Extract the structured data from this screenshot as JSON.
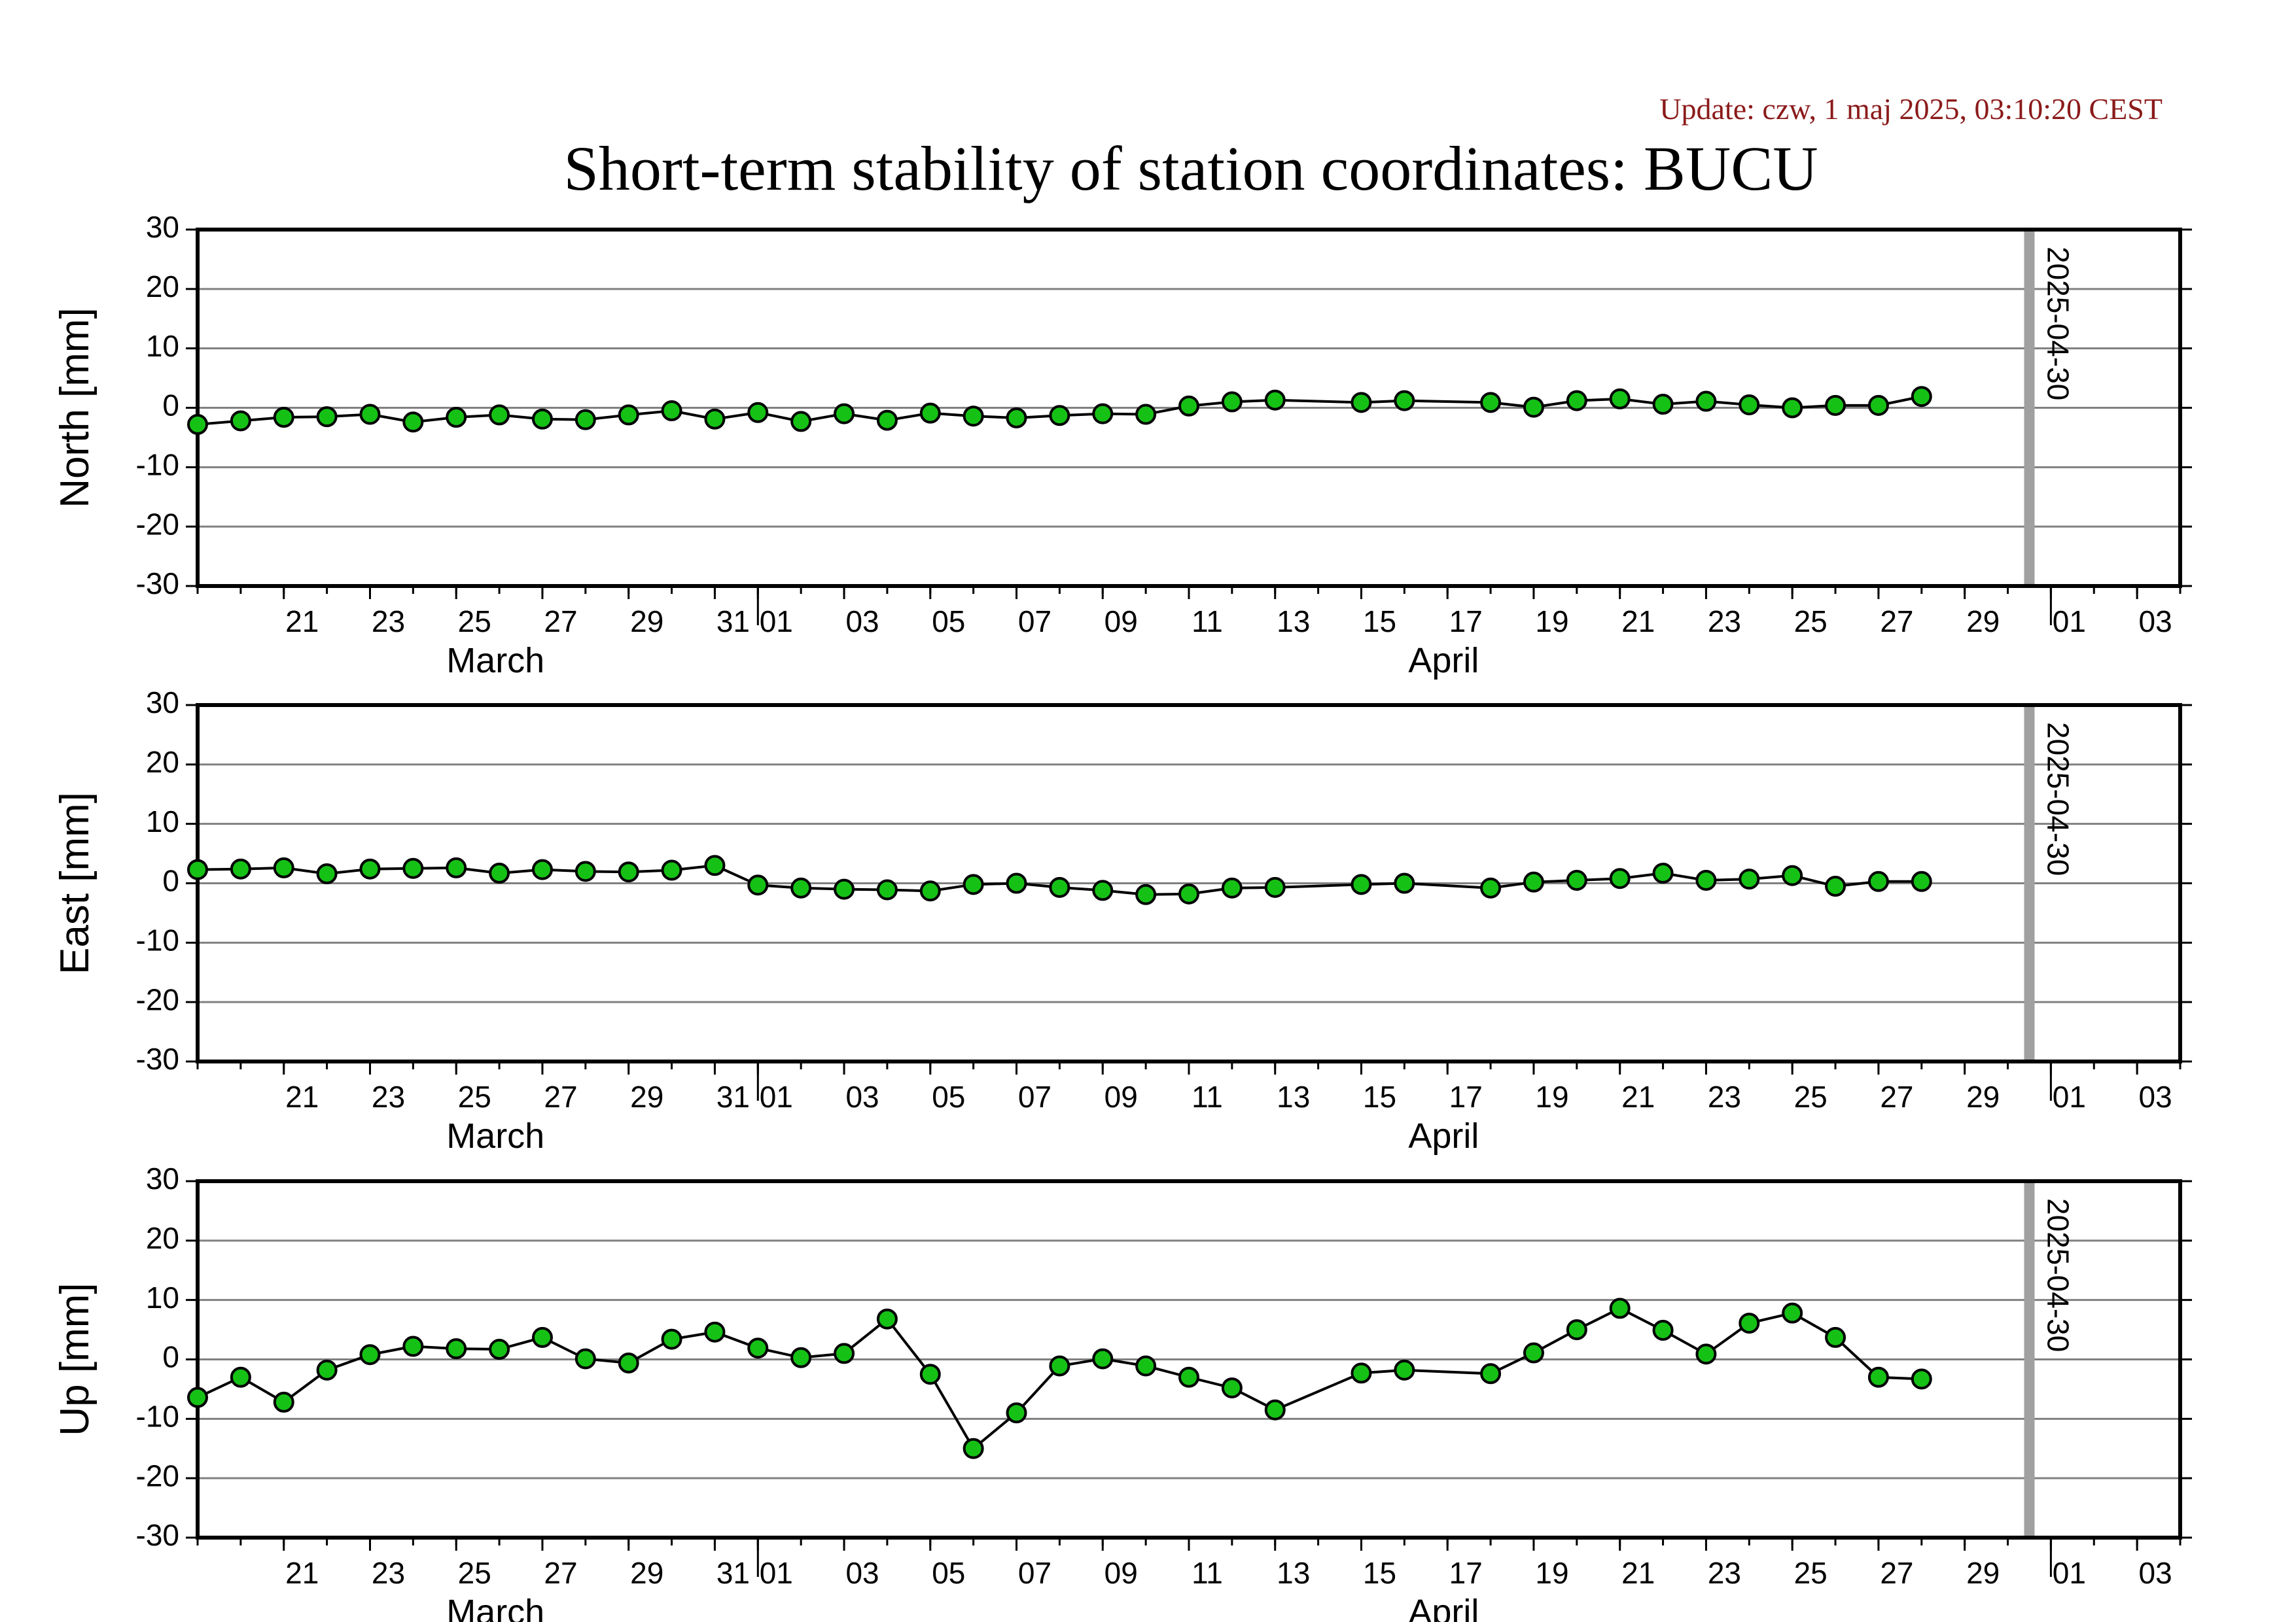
{
  "update_text": "Update: czw, 1 maj 2025, 03:10:20 CEST",
  "title": "Short-term stability of station coordinates: BUCU",
  "colors": {
    "marker_fill": "#16c116",
    "marker_stroke": "#000000",
    "line": "#000000",
    "grid": "#808080",
    "current_date_bar": "#a0a0a0",
    "update_text": "#8b1a1a"
  },
  "x_axis": {
    "start": "2025-03-19",
    "end": "2025-05-04",
    "day_ticks": [
      {
        "date": "2025-03-21",
        "label": "21"
      },
      {
        "date": "2025-03-23",
        "label": "23"
      },
      {
        "date": "2025-03-25",
        "label": "25"
      },
      {
        "date": "2025-03-27",
        "label": "27"
      },
      {
        "date": "2025-03-29",
        "label": "29"
      },
      {
        "date": "2025-03-31",
        "label": "31"
      },
      {
        "date": "2025-04-01",
        "label": "01"
      },
      {
        "date": "2025-04-03",
        "label": "03"
      },
      {
        "date": "2025-04-05",
        "label": "05"
      },
      {
        "date": "2025-04-07",
        "label": "07"
      },
      {
        "date": "2025-04-09",
        "label": "09"
      },
      {
        "date": "2025-04-11",
        "label": "11"
      },
      {
        "date": "2025-04-13",
        "label": "13"
      },
      {
        "date": "2025-04-15",
        "label": "15"
      },
      {
        "date": "2025-04-17",
        "label": "17"
      },
      {
        "date": "2025-04-19",
        "label": "19"
      },
      {
        "date": "2025-04-21",
        "label": "21"
      },
      {
        "date": "2025-04-23",
        "label": "23"
      },
      {
        "date": "2025-04-25",
        "label": "25"
      },
      {
        "date": "2025-04-27",
        "label": "27"
      },
      {
        "date": "2025-04-29",
        "label": "29"
      },
      {
        "date": "2025-05-01",
        "label": "01"
      },
      {
        "date": "2025-05-03",
        "label": "03"
      }
    ],
    "month_boundaries": [
      "2025-04-01",
      "2025-05-01"
    ],
    "month_labels": [
      {
        "date": "2025-03-25",
        "label": "March"
      },
      {
        "date": "2025-04-16",
        "label": "April"
      }
    ]
  },
  "current_date": {
    "date": "2025-04-30",
    "label": "2025-04-30"
  },
  "chart_data": [
    {
      "type": "line",
      "ylabel": "North [mm]",
      "ylim": [
        -30,
        30
      ],
      "yticks": [
        -30,
        -20,
        -10,
        0,
        10,
        20,
        30
      ],
      "grid": true,
      "markers": true,
      "x": [
        "2025-03-19",
        "2025-03-20",
        "2025-03-21",
        "2025-03-22",
        "2025-03-23",
        "2025-03-24",
        "2025-03-25",
        "2025-03-26",
        "2025-03-27",
        "2025-03-28",
        "2025-03-29",
        "2025-03-30",
        "2025-03-31",
        "2025-04-01",
        "2025-04-02",
        "2025-04-03",
        "2025-04-04",
        "2025-04-05",
        "2025-04-06",
        "2025-04-07",
        "2025-04-08",
        "2025-04-09",
        "2025-04-10",
        "2025-04-11",
        "2025-04-12",
        "2025-04-13",
        "2025-04-15",
        "2025-04-16",
        "2025-04-18",
        "2025-04-19",
        "2025-04-20",
        "2025-04-21",
        "2025-04-22",
        "2025-04-23",
        "2025-04-24",
        "2025-04-25",
        "2025-04-26",
        "2025-04-27",
        "2025-04-28"
      ],
      "values": [
        -2.8,
        -2.2,
        -1.6,
        -1.5,
        -1.1,
        -2.4,
        -1.6,
        -1.2,
        -1.9,
        -2.0,
        -1.2,
        -0.5,
        -1.9,
        -0.8,
        -2.3,
        -1.0,
        -2.1,
        -0.9,
        -1.4,
        -1.7,
        -1.3,
        -1.0,
        -1.1,
        0.3,
        1.0,
        1.3,
        0.9,
        1.2,
        0.9,
        0.1,
        1.2,
        1.5,
        0.6,
        1.1,
        0.5,
        0.0,
        0.4,
        0.4,
        1.9
      ]
    },
    {
      "type": "line",
      "ylabel": "East [mm]",
      "ylim": [
        -30,
        30
      ],
      "yticks": [
        -30,
        -20,
        -10,
        0,
        10,
        20,
        30
      ],
      "grid": true,
      "markers": true,
      "x": [
        "2025-03-19",
        "2025-03-20",
        "2025-03-21",
        "2025-03-22",
        "2025-03-23",
        "2025-03-24",
        "2025-03-25",
        "2025-03-26",
        "2025-03-27",
        "2025-03-28",
        "2025-03-29",
        "2025-03-30",
        "2025-03-31",
        "2025-04-01",
        "2025-04-02",
        "2025-04-03",
        "2025-04-04",
        "2025-04-05",
        "2025-04-06",
        "2025-04-07",
        "2025-04-08",
        "2025-04-09",
        "2025-04-10",
        "2025-04-11",
        "2025-04-12",
        "2025-04-13",
        "2025-04-15",
        "2025-04-16",
        "2025-04-18",
        "2025-04-19",
        "2025-04-20",
        "2025-04-21",
        "2025-04-22",
        "2025-04-23",
        "2025-04-24",
        "2025-04-25",
        "2025-04-26",
        "2025-04-27",
        "2025-04-28"
      ],
      "values": [
        2.3,
        2.4,
        2.6,
        1.6,
        2.4,
        2.5,
        2.6,
        1.7,
        2.3,
        2.0,
        1.9,
        2.2,
        3.0,
        -0.3,
        -0.8,
        -1.0,
        -1.1,
        -1.3,
        -0.2,
        0.0,
        -0.7,
        -1.2,
        -1.9,
        -1.8,
        -0.8,
        -0.7,
        -0.2,
        0.0,
        -0.8,
        0.2,
        0.5,
        0.8,
        1.7,
        0.5,
        0.7,
        1.3,
        -0.5,
        0.3,
        0.3
      ]
    },
    {
      "type": "line",
      "ylabel": "Up [mm]",
      "ylim": [
        -30,
        30
      ],
      "yticks": [
        -30,
        -20,
        -10,
        0,
        10,
        20,
        30
      ],
      "grid": true,
      "markers": true,
      "x": [
        "2025-03-19",
        "2025-03-20",
        "2025-03-21",
        "2025-03-22",
        "2025-03-23",
        "2025-03-24",
        "2025-03-25",
        "2025-03-26",
        "2025-03-27",
        "2025-03-28",
        "2025-03-29",
        "2025-03-30",
        "2025-03-31",
        "2025-04-01",
        "2025-04-02",
        "2025-04-03",
        "2025-04-04",
        "2025-04-05",
        "2025-04-06",
        "2025-04-07",
        "2025-04-08",
        "2025-04-09",
        "2025-04-10",
        "2025-04-11",
        "2025-04-12",
        "2025-04-13",
        "2025-04-15",
        "2025-04-16",
        "2025-04-18",
        "2025-04-19",
        "2025-04-20",
        "2025-04-21",
        "2025-04-22",
        "2025-04-23",
        "2025-04-24",
        "2025-04-25",
        "2025-04-26",
        "2025-04-27",
        "2025-04-28"
      ],
      "values": [
        -6.4,
        -3.0,
        -7.2,
        -1.8,
        0.8,
        2.2,
        1.8,
        1.7,
        3.7,
        0.1,
        -0.6,
        3.4,
        4.6,
        1.9,
        0.3,
        1.0,
        6.8,
        -2.5,
        -15.0,
        -9.0,
        -1.1,
        0.1,
        -1.1,
        -3.0,
        -4.8,
        -8.5,
        -2.3,
        -1.8,
        -2.4,
        1.1,
        5.0,
        8.6,
        4.9,
        0.9,
        6.1,
        7.8,
        3.7,
        -3.0,
        -3.3
      ]
    }
  ]
}
